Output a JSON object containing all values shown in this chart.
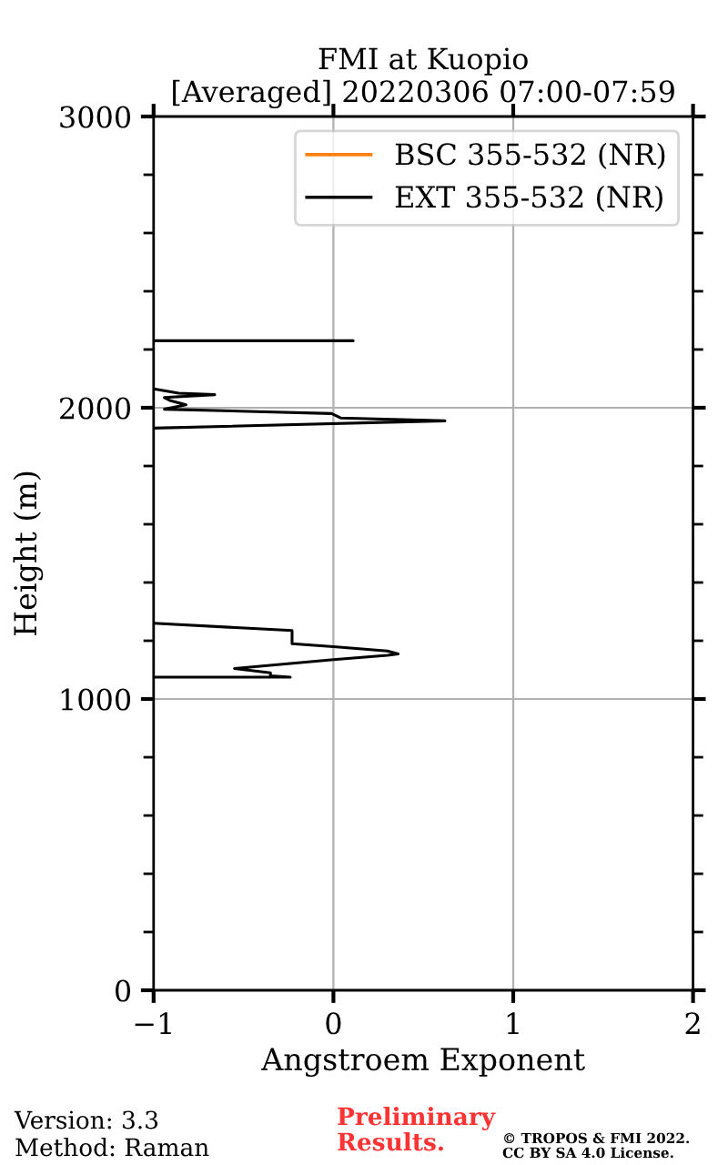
{
  "chart_data": {
    "type": "line",
    "title": "FMI at Kuopio",
    "subtitle": "[Averaged] 20220306 07:00-07:59",
    "xlabel": "Angstroem Exponent",
    "ylabel": "Height (m)",
    "xlim": [
      -1,
      2
    ],
    "xticks": [
      {
        "value": -1,
        "label": "−1"
      },
      0,
      1,
      2
    ],
    "ylim": [
      0,
      3000
    ],
    "yticks": [
      0,
      {
        "value": 200,
        "label": null
      },
      {
        "value": 400,
        "label": null
      },
      {
        "value": 600,
        "label": null
      },
      {
        "value": 800,
        "label": null
      },
      1000,
      {
        "value": 1200,
        "label": null
      },
      {
        "value": 1400,
        "label": null
      },
      {
        "value": 1600,
        "label": null
      },
      {
        "value": 1800,
        "label": null
      },
      2000,
      {
        "value": 2200,
        "label": null
      },
      {
        "value": 2400,
        "label": null
      },
      {
        "value": 2600,
        "label": null
      },
      {
        "value": 2800,
        "label": null
      },
      3000
    ],
    "grid": true,
    "legend": "top right",
    "marker": "none",
    "line_style": "solid",
    "series": [
      {
        "name": "BSC 355-532 (NR)",
        "color": "#ff7f0e"
      },
      {
        "name": "EXT 355-532 (NR)",
        "color": "#000000",
        "x": [
          -1.0,
          -0.24,
          -0.35,
          -0.35,
          -0.55,
          0.0,
          0.3,
          0.36,
          0.3,
          0.0,
          -0.23,
          -0.23,
          -1.0,
          null,
          -1.0,
          0.62,
          0.04,
          -0.01,
          -0.94,
          -0.82,
          -0.91,
          -0.94,
          -0.66,
          -0.86,
          -1.0,
          null,
          -1.0,
          0.11
        ],
        "values": [
          1075,
          1075,
          1080,
          1090,
          1105,
          1135,
          1150,
          1155,
          1165,
          1180,
          1190,
          1235,
          1260,
          null,
          1930,
          1955,
          1965,
          1980,
          1995,
          2010,
          2025,
          2035,
          2045,
          2050,
          2065,
          null,
          2230,
          2230
        ]
      }
    ],
    "annotations": [
      "Version: 3.3",
      "Method: Raman",
      "Preliminary\nResults.",
      "© TROPOS & FMI 2022.\nCC BY SA 4.0 License."
    ]
  }
}
